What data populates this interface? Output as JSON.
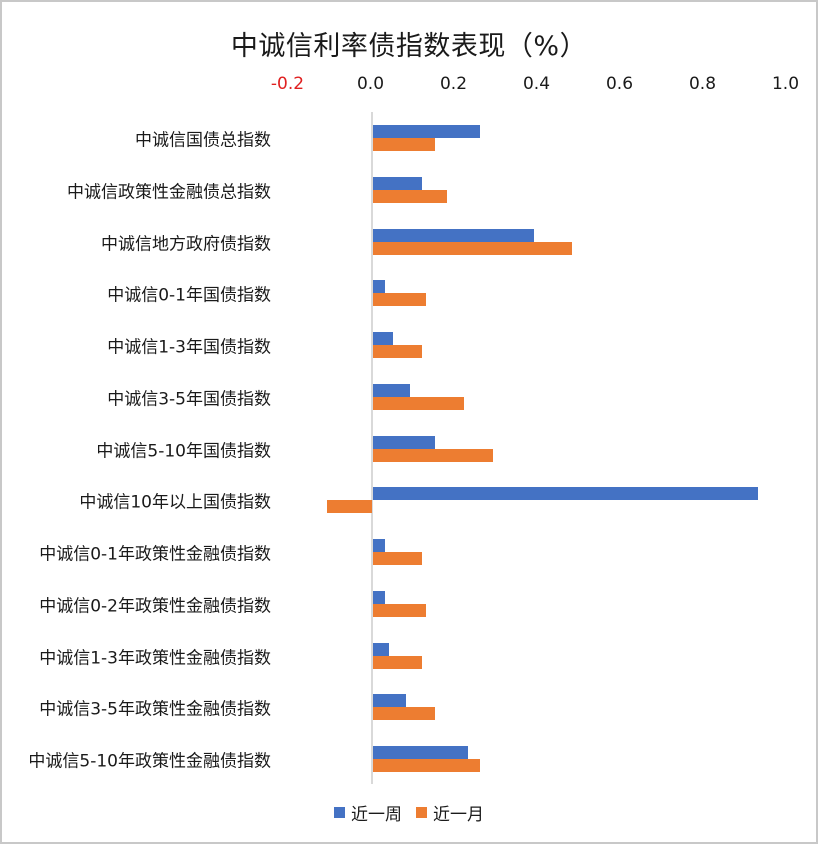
{
  "chart_data": {
    "type": "bar",
    "orientation": "horizontal",
    "title": "中诚信利率债指数表现（%）",
    "xlabel": "",
    "ylabel": "",
    "xlim": [
      -0.2,
      1.0
    ],
    "x_ticks": [
      "-0.2",
      "0.0",
      "0.2",
      "0.4",
      "0.6",
      "0.8",
      "1.0"
    ],
    "axis_position": "top",
    "grid": false,
    "legend_position": "bottom",
    "categories": [
      "中诚信国债总指数",
      "中诚信政策性金融债总指数",
      "中诚信地方政府债指数",
      "中诚信0-1年国债指数",
      "中诚信1-3年国债指数",
      "中诚信3-5年国债指数",
      "中诚信5-10年国债指数",
      "中诚信10年以上国债指数",
      "中诚信0-1年政策性金融债指数",
      "中诚信0-2年政策性金融债指数",
      "中诚信1-3年政策性金融债指数",
      "中诚信3-5年政策性金融债指数",
      "中诚信5-10年政策性金融债指数"
    ],
    "series": [
      {
        "name": "近一周",
        "color": "#4472C4",
        "values": [
          0.26,
          0.12,
          0.39,
          0.03,
          0.05,
          0.09,
          0.15,
          0.93,
          0.03,
          0.03,
          0.04,
          0.08,
          0.23
        ]
      },
      {
        "name": "近一月",
        "color": "#ED7D31",
        "values": [
          0.15,
          0.18,
          0.48,
          0.13,
          0.12,
          0.22,
          0.29,
          -0.11,
          0.12,
          0.13,
          0.12,
          0.15,
          0.26
        ]
      }
    ]
  },
  "colors": {
    "negative_tick": "#e02020",
    "axis_line": "#d9d9d9",
    "border": "#c8c8c8"
  }
}
